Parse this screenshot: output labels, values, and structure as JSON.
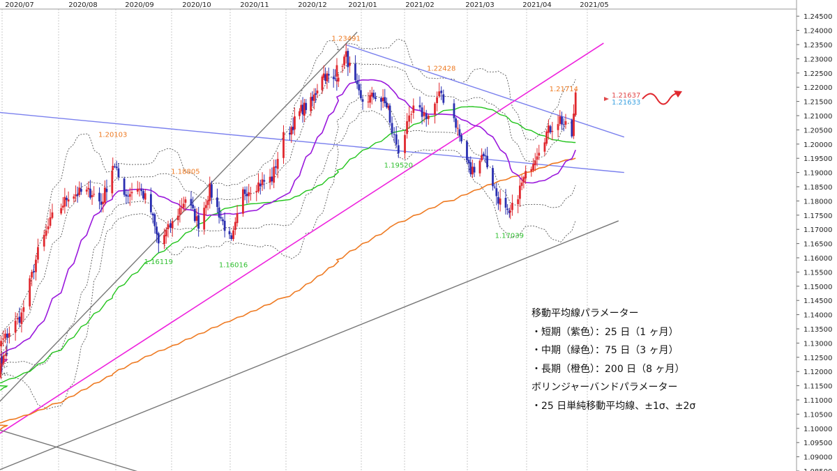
{
  "chart_data": {
    "type": "candlestick",
    "x_ticks": [
      "2020/07",
      "2020/08",
      "2020/09",
      "2020/10",
      "2020/11",
      "2020/12",
      "2021/01",
      "2021/02",
      "2021/03",
      "2021/04",
      "2021/05"
    ],
    "y_ticks": [
      "1.24500",
      "1.24000",
      "1.23500",
      "1.23000",
      "1.22500",
      "1.22000",
      "1.21500",
      "1.21000",
      "1.20500",
      "1.20000",
      "1.19500",
      "1.19000",
      "1.18500",
      "1.18000",
      "1.17500",
      "1.17000",
      "1.16500",
      "1.16000",
      "1.15500",
      "1.15000",
      "1.14500",
      "1.14000",
      "1.13500",
      "1.13000",
      "1.12500",
      "1.12000",
      "1.11500",
      "1.11000",
      "1.10500",
      "1.10000",
      "1.09500",
      "1.09000",
      "1.08500"
    ],
    "ylim": [
      1.085,
      1.2475
    ],
    "price_labels": [
      {
        "text": "1.23491",
        "value": 1.23491,
        "date": "2021-01-06",
        "color": "#ee7a22",
        "placement": "above"
      },
      {
        "text": "1.22428",
        "value": 1.22428,
        "date": "2021-02-25",
        "color": "#ee7a22",
        "placement": "above"
      },
      {
        "text": "1.21714",
        "value": 1.21714,
        "date": "2021-04-29",
        "color": "#ee7a22",
        "placement": "above"
      },
      {
        "text": "1.20103",
        "value": 1.20103,
        "date": "2020-09-01",
        "color": "#ee7a22",
        "placement": "above"
      },
      {
        "text": "1.18805",
        "value": 1.18805,
        "date": "2020-10-09",
        "color": "#ee7a22",
        "placement": "above"
      },
      {
        "text": "1.19520",
        "value": 1.1952,
        "date": "2021-02-05",
        "color": "#2fbf2f",
        "placement": "below"
      },
      {
        "text": "1.16119",
        "value": 1.16119,
        "date": "2020-09-25",
        "color": "#2fbf2f",
        "placement": "below"
      },
      {
        "text": "1.16016",
        "value": 1.16016,
        "date": "2020-11-04",
        "color": "#2fbf2f",
        "placement": "below"
      },
      {
        "text": "1.17039",
        "value": 1.17039,
        "date": "2021-03-31",
        "color": "#2fbf2f",
        "placement": "below"
      }
    ],
    "current_labels": [
      {
        "text": "1.21637",
        "value": 1.21637,
        "color": "#e0484a"
      },
      {
        "text": "1.21633",
        "value": 1.21633,
        "color": "#3aa0e0"
      }
    ],
    "colors": {
      "candle_up": "#e0282e",
      "candle_down": "#2a2fb0",
      "ma25": "#9a18dc",
      "ma75": "#22c41c",
      "ma200": "#ee7a22",
      "bollinger": "#555555",
      "blue_lines": "#7a80ee",
      "magenta_line": "#ee22dd",
      "gray_lines": "#777777",
      "arrow": "#e0282e",
      "grid_month": "#c8c8c8"
    },
    "trend_lines": [
      {
        "name": "",
        "color": "#7a80ee",
        "points": [
          [
            "2021-01-06",
            1.23491
          ],
          [
            "2021-05-31",
            1.20247
          ]
        ]
      },
      {
        "name": "",
        "color": "#7a80ee",
        "points": [
          [
            "2020-06-15",
            1.2113
          ],
          [
            "2021-05-31",
            1.19
          ]
        ]
      },
      {
        "name": "",
        "color": "#ee22dd",
        "points": [
          [
            "2020-06-15",
            1.097
          ],
          [
            "2021-05-20",
            1.2355
          ]
        ]
      },
      {
        "name": "",
        "color": "#777777",
        "points": [
          [
            "2020-06-15",
            1.1075
          ],
          [
            "2021-01-12",
            1.2394
          ]
        ]
      },
      {
        "name": "",
        "color": "#777777",
        "points": [
          [
            "2020-06-15",
            1.0847
          ],
          [
            "2021-05-28",
            1.173
          ]
        ]
      },
      {
        "name": "",
        "color": "#777777",
        "points": [
          [
            "2020-06-15",
            1.1
          ],
          [
            "2020-09-17",
            1.0842
          ]
        ]
      }
    ],
    "legend": {
      "title": "移動平均線パラメーター",
      "items": [
        "・短期（紫色）：25 日（1 ヶ月）",
        "・中期（緑色）：75 日（3 ヶ月）",
        "・長期（橙色）：200 日（8 ヶ月）",
        "ボリンジャーバンドパラメーター",
        "・25 日単純移動平均線、±1σ、±2σ"
      ]
    }
  }
}
